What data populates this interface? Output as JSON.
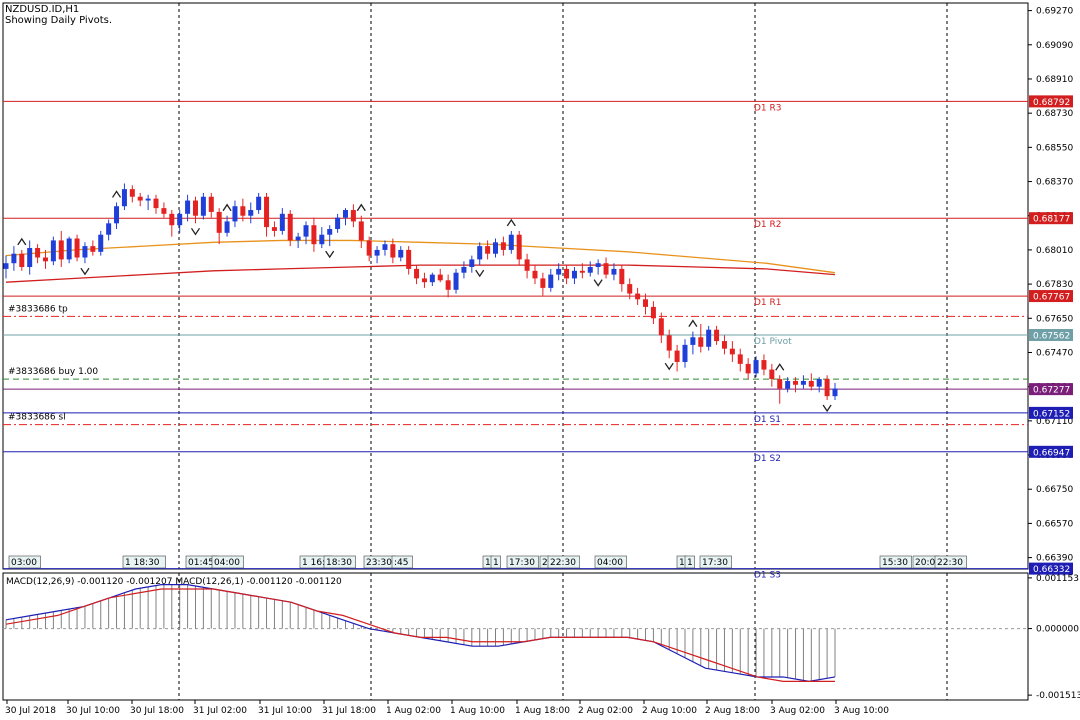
{
  "header": {
    "symbol": "NZDUSD.ID,H1",
    "subtitle": "Showing Daily Pivots."
  },
  "colors": {
    "bull": "#1f3fd8",
    "bear": "#e52222",
    "resistance": "#d21e1e",
    "support": "#1e1eb4",
    "pivot": "#6fa0a8",
    "ma_fast": "#e8921c",
    "ma_slow": "#d21e1e",
    "macd_line": "#1e1eb4",
    "signal_line": "#d21e1e",
    "histogram": "#808080",
    "trade_tp_sl": "#e52222",
    "trade_buy": "#2a8a2a",
    "current_price": "#7a1e7a"
  },
  "chart_data": [
    {
      "type": "candlestick",
      "title": "NZDUSD.ID,H1",
      "subtitle": "Showing Daily Pivots.",
      "ylim": [
        0.6633,
        0.6931
      ],
      "y_ticks": [
        "0.69270",
        "0.69090",
        "0.68910",
        "0.68730",
        "0.68550",
        "0.68370",
        "0.68190",
        "0.68010",
        "0.67830",
        "0.67650",
        "0.67470",
        "0.67290",
        "0.67110",
        "0.66930",
        "0.66750",
        "0.66570",
        "0.66390"
      ],
      "x_tick_labels": [
        "30 Jul 2018",
        "30 Jul 10:00",
        "30 Jul 18:00",
        "31 Jul 02:00",
        "31 Jul 10:00",
        "31 Jul 18:00",
        "1 Aug 02:00",
        "1 Aug 10:00",
        "1 Aug 18:00",
        "2 Aug 02:00",
        "2 Aug 10:00",
        "2 Aug 18:00",
        "3 Aug 02:00",
        "3 Aug 10:00"
      ],
      "pivot_levels": [
        {
          "name": "D1 R3",
          "value": "0.68792",
          "kind": "resistance"
        },
        {
          "name": "D1 R2",
          "value": "0.68177",
          "kind": "resistance"
        },
        {
          "name": "D1 R1",
          "value": "0.67767",
          "kind": "resistance"
        },
        {
          "name": "D1 Pivot",
          "value": "0.67562",
          "kind": "pivot"
        },
        {
          "name": "D1 S1",
          "value": "0.67152",
          "kind": "support"
        },
        {
          "name": "D1 S2",
          "value": "0.66947",
          "kind": "support"
        },
        {
          "name": "D1 S3",
          "value": "0.66332",
          "kind": "support"
        }
      ],
      "current_price": "0.67277",
      "trade_lines": [
        {
          "label": "#3833686 tp",
          "value": 0.6766,
          "style": "dashdot"
        },
        {
          "label": "#3833686 buy 1.00",
          "value": 0.6733,
          "style": "dash"
        },
        {
          "label": "#3833686 sl",
          "value": 0.6709,
          "style": "dashdot"
        }
      ],
      "candles": [
        [
          0.6791,
          0.6798,
          0.6786,
          0.6794
        ],
        [
          0.6794,
          0.6803,
          0.679,
          0.6799
        ],
        [
          0.6799,
          0.6801,
          0.679,
          0.6792
        ],
        [
          0.6792,
          0.6806,
          0.6788,
          0.6802
        ],
        [
          0.6802,
          0.6804,
          0.6794,
          0.6797
        ],
        [
          0.6797,
          0.6801,
          0.6791,
          0.6795
        ],
        [
          0.6795,
          0.6808,
          0.6793,
          0.6806
        ],
        [
          0.6806,
          0.6811,
          0.6792,
          0.6796
        ],
        [
          0.6796,
          0.6808,
          0.6794,
          0.6807
        ],
        [
          0.6807,
          0.6809,
          0.6795,
          0.6797
        ],
        [
          0.6797,
          0.6805,
          0.6794,
          0.6803
        ],
        [
          0.6803,
          0.6806,
          0.6798,
          0.68
        ],
        [
          0.68,
          0.6811,
          0.6798,
          0.6809
        ],
        [
          0.6809,
          0.6817,
          0.6806,
          0.6815
        ],
        [
          0.6815,
          0.6826,
          0.6812,
          0.6824
        ],
        [
          0.6824,
          0.6836,
          0.6822,
          0.6833
        ],
        [
          0.6833,
          0.6835,
          0.6826,
          0.6829
        ],
        [
          0.6829,
          0.6831,
          0.6824,
          0.6827
        ],
        [
          0.6827,
          0.683,
          0.6822,
          0.6828
        ],
        [
          0.6828,
          0.683,
          0.682,
          0.6823
        ],
        [
          0.6823,
          0.6826,
          0.6818,
          0.682
        ],
        [
          0.682,
          0.6822,
          0.6808,
          0.6814
        ],
        [
          0.6814,
          0.6822,
          0.681,
          0.682
        ],
        [
          0.682,
          0.683,
          0.6816,
          0.6827
        ],
        [
          0.6827,
          0.6829,
          0.6815,
          0.6819
        ],
        [
          0.6819,
          0.6831,
          0.6817,
          0.6829
        ],
        [
          0.6829,
          0.6831,
          0.6818,
          0.6821
        ],
        [
          0.6821,
          0.6823,
          0.6804,
          0.681
        ],
        [
          0.681,
          0.6819,
          0.6808,
          0.6816
        ],
        [
          0.6816,
          0.6827,
          0.6813,
          0.6824
        ],
        [
          0.6824,
          0.6828,
          0.6816,
          0.6819
        ],
        [
          0.6819,
          0.6826,
          0.6815,
          0.6822
        ],
        [
          0.6822,
          0.6831,
          0.682,
          0.6829
        ],
        [
          0.6829,
          0.6831,
          0.6808,
          0.6813
        ],
        [
          0.6813,
          0.6816,
          0.6808,
          0.6811
        ],
        [
          0.6811,
          0.6823,
          0.6809,
          0.682
        ],
        [
          0.682,
          0.6822,
          0.6803,
          0.6806
        ],
        [
          0.6806,
          0.681,
          0.6802,
          0.6808
        ],
        [
          0.6808,
          0.6816,
          0.6804,
          0.6814
        ],
        [
          0.6814,
          0.6818,
          0.68,
          0.6804
        ],
        [
          0.6804,
          0.6813,
          0.6802,
          0.6809
        ],
        [
          0.6809,
          0.6814,
          0.6803,
          0.6812
        ],
        [
          0.6812,
          0.682,
          0.681,
          0.6818
        ],
        [
          0.6818,
          0.6823,
          0.6814,
          0.6822
        ],
        [
          0.6822,
          0.6825,
          0.6813,
          0.6816
        ],
        [
          0.6816,
          0.6819,
          0.6802,
          0.6806
        ],
        [
          0.6806,
          0.6808,
          0.6795,
          0.6798
        ],
        [
          0.6798,
          0.6803,
          0.6794,
          0.6801
        ],
        [
          0.6801,
          0.6806,
          0.6798,
          0.6804
        ],
        [
          0.6804,
          0.6807,
          0.6794,
          0.6797
        ],
        [
          0.6797,
          0.6803,
          0.6795,
          0.6801
        ],
        [
          0.6801,
          0.6803,
          0.6788,
          0.6791
        ],
        [
          0.6791,
          0.6793,
          0.6783,
          0.6786
        ],
        [
          0.6786,
          0.6789,
          0.6781,
          0.6784
        ],
        [
          0.6784,
          0.6789,
          0.6782,
          0.6788
        ],
        [
          0.6788,
          0.6791,
          0.6784,
          0.6785
        ],
        [
          0.6785,
          0.6788,
          0.6776,
          0.678
        ],
        [
          0.678,
          0.6791,
          0.6778,
          0.6789
        ],
        [
          0.6789,
          0.6795,
          0.6786,
          0.6792
        ],
        [
          0.6792,
          0.6798,
          0.6789,
          0.6796
        ],
        [
          0.6796,
          0.6805,
          0.6793,
          0.6803
        ],
        [
          0.6803,
          0.6806,
          0.6796,
          0.6799
        ],
        [
          0.6799,
          0.6807,
          0.6797,
          0.6805
        ],
        [
          0.6805,
          0.6808,
          0.6798,
          0.6801
        ],
        [
          0.6801,
          0.6811,
          0.6799,
          0.6809
        ],
        [
          0.6809,
          0.6811,
          0.6793,
          0.6796
        ],
        [
          0.6796,
          0.6799,
          0.6786,
          0.679
        ],
        [
          0.679,
          0.6793,
          0.6783,
          0.6786
        ],
        [
          0.6786,
          0.6789,
          0.6777,
          0.6781
        ],
        [
          0.6781,
          0.6791,
          0.6779,
          0.6788
        ],
        [
          0.6788,
          0.6794,
          0.6785,
          0.6791
        ],
        [
          0.6791,
          0.6793,
          0.6783,
          0.6786
        ],
        [
          0.6786,
          0.6792,
          0.6783,
          0.679
        ],
        [
          0.679,
          0.6794,
          0.6786,
          0.6789
        ],
        [
          0.6789,
          0.6795,
          0.6787,
          0.6792
        ],
        [
          0.6792,
          0.6796,
          0.6788,
          0.6794
        ],
        [
          0.6794,
          0.6797,
          0.6786,
          0.6788
        ],
        [
          0.6788,
          0.6794,
          0.6785,
          0.6791
        ],
        [
          0.6791,
          0.6793,
          0.6779,
          0.6783
        ],
        [
          0.6783,
          0.6786,
          0.6775,
          0.6778
        ],
        [
          0.6778,
          0.6781,
          0.6772,
          0.6775
        ],
        [
          0.6775,
          0.6778,
          0.6767,
          0.6771
        ],
        [
          0.6771,
          0.6774,
          0.6762,
          0.6765
        ],
        [
          0.6765,
          0.6768,
          0.6752,
          0.6756
        ],
        [
          0.6756,
          0.6759,
          0.6744,
          0.6748
        ],
        [
          0.6748,
          0.6751,
          0.6737,
          0.6742
        ],
        [
          0.6742,
          0.6754,
          0.6739,
          0.6751
        ],
        [
          0.6751,
          0.6758,
          0.6746,
          0.6755
        ],
        [
          0.6755,
          0.6762,
          0.6747,
          0.675
        ],
        [
          0.675,
          0.6761,
          0.6748,
          0.6759
        ],
        [
          0.6759,
          0.6761,
          0.6751,
          0.6753
        ],
        [
          0.6753,
          0.6756,
          0.6746,
          0.6749
        ],
        [
          0.6749,
          0.6753,
          0.6742,
          0.6746
        ],
        [
          0.6746,
          0.6749,
          0.6737,
          0.6741
        ],
        [
          0.6741,
          0.6744,
          0.6733,
          0.6736
        ],
        [
          0.6736,
          0.6745,
          0.6734,
          0.6743
        ],
        [
          0.6743,
          0.6746,
          0.6735,
          0.6738
        ],
        [
          0.6738,
          0.6741,
          0.6729,
          0.6733
        ],
        [
          0.6733,
          0.6735,
          0.672,
          0.6728
        ],
        [
          0.6728,
          0.6734,
          0.6726,
          0.6732
        ],
        [
          0.6732,
          0.6734,
          0.6726,
          0.673
        ],
        [
          0.673,
          0.6735,
          0.6728,
          0.6732
        ],
        [
          0.6732,
          0.6736,
          0.6727,
          0.6729
        ],
        [
          0.6729,
          0.6734,
          0.6726,
          0.6733
        ],
        [
          0.6733,
          0.6735,
          0.6722,
          0.6724
        ],
        [
          0.6724,
          0.6731,
          0.6722,
          0.6728
        ]
      ],
      "ma_fast": [
        0.6798,
        0.6801,
        0.6803,
        0.6805,
        0.6806,
        0.6806,
        0.6805,
        0.6804,
        0.6802,
        0.68,
        0.6797,
        0.6794,
        0.6789
      ],
      "ma_slow": [
        0.6784,
        0.6786,
        0.6788,
        0.679,
        0.6791,
        0.6792,
        0.6793,
        0.6793,
        0.6793,
        0.6793,
        0.6792,
        0.6791,
        0.6788
      ],
      "bottom_markers": [
        "03:00",
        "1 18:30",
        "01:45",
        "04:00",
        "1 16:",
        "18:30",
        "23:30",
        ":45",
        "1",
        "1",
        "17:30",
        "2",
        "22:30",
        "04:00",
        "1",
        "1",
        "17:30",
        "15:30",
        "20:0",
        "22:30"
      ]
    },
    {
      "type": "macd",
      "label": "MACD(12,26,9) -0.001120 -0.001207 MACD(12,26,1) -0.001120 -0.001120",
      "ylim": [
        -0.00151,
        0.00115
      ],
      "y_ticks": [
        "0.001153",
        "0.000000",
        "-0.001513"
      ],
      "macd": [
        0.0002,
        0.0003,
        0.0004,
        0.0005,
        0.0007,
        0.0009,
        0.001,
        0.001,
        0.0009,
        0.0008,
        0.0007,
        0.0006,
        0.0004,
        0.0002,
        0.0,
        -0.0001,
        -0.0002,
        -0.0003,
        -0.0004,
        -0.0004,
        -0.0003,
        -0.0002,
        -0.0002,
        -0.0002,
        -0.0002,
        -0.0003,
        -0.0006,
        -0.0009,
        -0.001,
        -0.0011,
        -0.0011,
        -0.0012,
        -0.0011
      ],
      "signal": [
        0.0001,
        0.0002,
        0.0003,
        0.0005,
        0.0007,
        0.0008,
        0.0009,
        0.0009,
        0.0009,
        0.0008,
        0.0007,
        0.0006,
        0.0004,
        0.0003,
        0.0001,
        -0.0001,
        -0.0002,
        -0.0002,
        -0.0003,
        -0.0003,
        -0.0003,
        -0.0002,
        -0.0002,
        -0.0002,
        -0.0002,
        -0.0003,
        -0.0005,
        -0.0007,
        -0.0009,
        -0.0011,
        -0.0012,
        -0.0012,
        -0.0012
      ]
    }
  ]
}
